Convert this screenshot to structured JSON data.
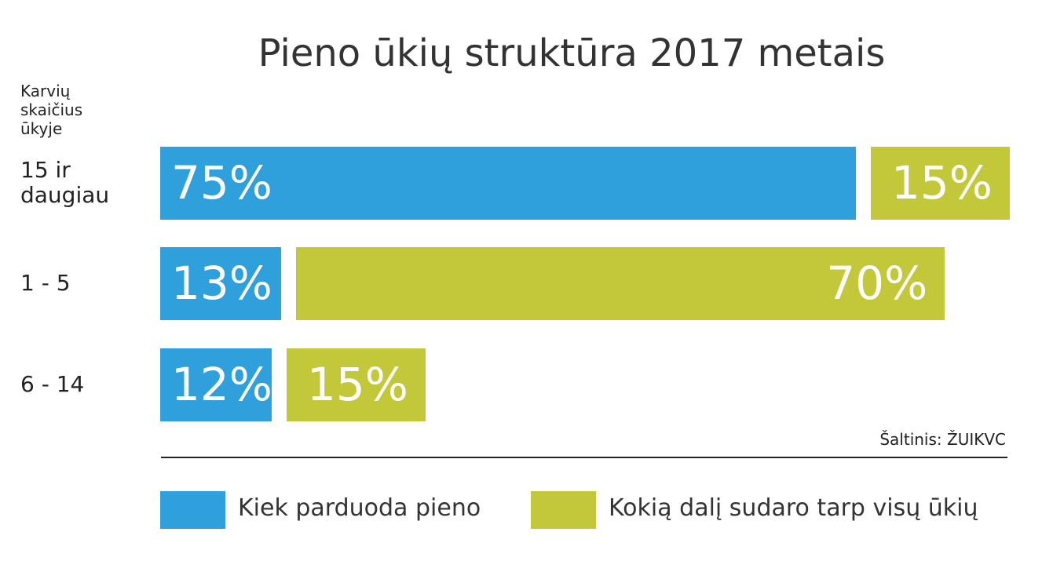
{
  "chart_data": {
    "type": "bar",
    "orientation": "horizontal",
    "stacked": true,
    "title": "Pieno ūkių struktūra 2017 metais",
    "ylabel": "Karvių skaičius ūkyje",
    "categories": [
      "15 ir daugiau",
      "1 - 5",
      "6 - 14"
    ],
    "series": [
      {
        "name": "Kiek parduoda pieno",
        "color": "#2fa0dc",
        "values": [
          75,
          13,
          12
        ],
        "value_labels": [
          "75%",
          "13%",
          "12%"
        ]
      },
      {
        "name": "Kokią dalį sudaro tarp visų ūkių",
        "color": "#c2c83a",
        "values": [
          15,
          70,
          15
        ],
        "value_labels": [
          "15%",
          "70%",
          "15%"
        ]
      }
    ],
    "source": "Šaltinis: ŽUIKVC",
    "legend": "bottom"
  }
}
